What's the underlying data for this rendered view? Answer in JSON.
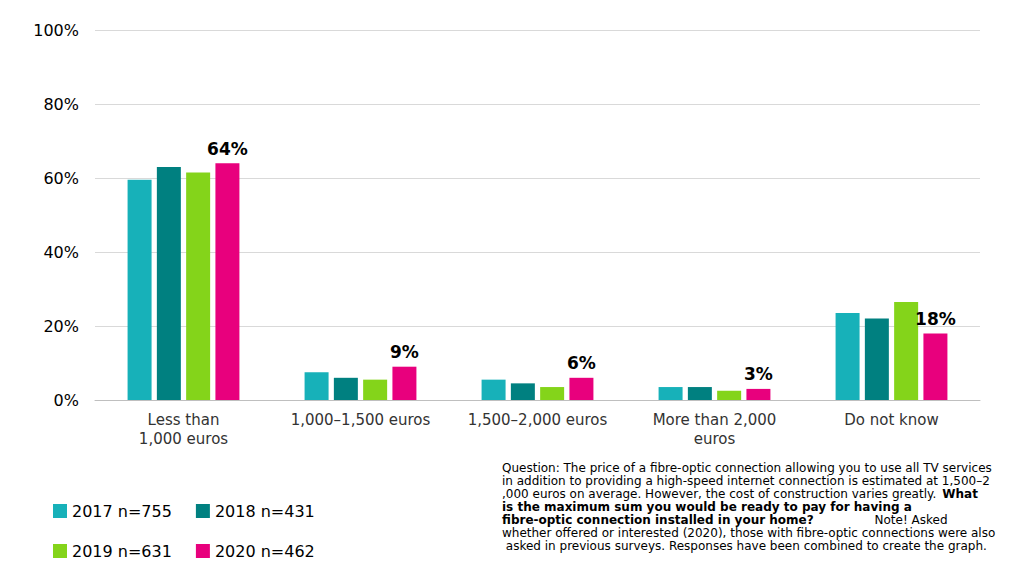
{
  "chart_data": {
    "type": "bar",
    "categories": [
      "Less than\n1,000 euros",
      "1,000–1,500 euros",
      "1,500–2,000 euros",
      "More than 2,000\neuros",
      "Do not know"
    ],
    "series": [
      {
        "name": "2017 n=755",
        "color": "#17b1b9",
        "values": [
          59.5,
          7.5,
          5.5,
          3.5,
          23.5
        ]
      },
      {
        "name": "2018 n=431",
        "color": "#008080",
        "values": [
          63,
          6,
          4.5,
          3.5,
          22
        ]
      },
      {
        "name": "2019 n=631",
        "color": "#84d41a",
        "values": [
          61.5,
          5.5,
          3.5,
          2.5,
          26.5
        ]
      },
      {
        "name": "2020 n=462",
        "color": "#e8007d",
        "values": [
          64,
          9,
          6,
          3,
          18
        ],
        "data_labels": true,
        "value_labels": [
          "64%",
          "9%",
          "6%",
          "3%",
          "18%"
        ]
      }
    ],
    "ylim": [
      0,
      100
    ],
    "yticks": [
      {
        "value": 0,
        "label": "0%"
      },
      {
        "value": 20,
        "label": "20%"
      },
      {
        "value": 40,
        "label": "40%"
      },
      {
        "value": 60,
        "label": "60%"
      },
      {
        "value": 80,
        "label": "80%"
      },
      {
        "value": 100,
        "label": "100%"
      }
    ],
    "grid": true,
    "legend": "bottom-left",
    "annotations": [
      {
        "text": "Question: The price of a fibre-optic connection allowing you to use all TV services in addition to providing a high-speed internet connection is estimated at 1,500–2,000 euros on average. However, the cost of construction varies greatly. ",
        "bold": false
      },
      {
        "text": "What is the maximum sum you would be ready to pay for having a fibre-optic connection installed in your home?",
        "bold": true
      },
      {
        "text": "\nNote! Asked whether offered or interested (2020), those with fibre-optic connections were also asked in previous surveys. Responses have been combined to create the graph.",
        "bold": false
      }
    ]
  }
}
